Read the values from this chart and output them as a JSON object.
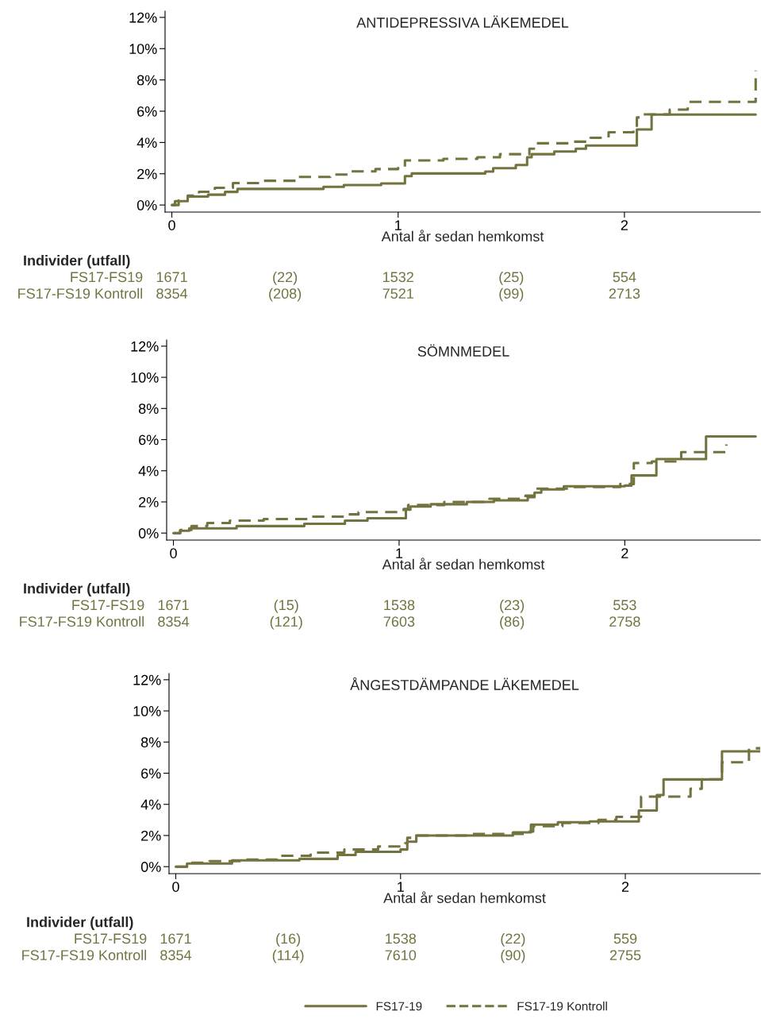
{
  "chart_data": [
    {
      "type": "step",
      "title": "ANTIDEPRESSIVA LÄKEMEDEL",
      "xlabel": "Antal år sedan hemkomst",
      "xlim": [
        -0.03,
        2.6
      ],
      "xticks": [
        0,
        1,
        2
      ],
      "ylim": [
        -0.45,
        12.4
      ],
      "yticks": [
        {
          "value": 0,
          "label": "0%"
        },
        {
          "value": 2,
          "label": "2%"
        },
        {
          "value": 4,
          "label": "4%"
        },
        {
          "value": 6,
          "label": "6%"
        },
        {
          "value": 8,
          "label": "8%"
        },
        {
          "value": 10,
          "label": "10%"
        },
        {
          "value": 12,
          "label": "12%"
        }
      ],
      "grid": false,
      "series": [
        {
          "name": "FS17-19",
          "color": "#73733f",
          "line_style": "solid",
          "x": [
            0,
            0.014,
            0.07,
            0.16,
            0.235,
            0.29,
            0.67,
            0.76,
            0.925,
            1.03,
            1.06,
            1.385,
            1.42,
            1.52,
            1.57,
            1.59,
            1.69,
            1.785,
            1.83,
            2.055,
            2.12,
            2.58
          ],
          "values": [
            0,
            0.25,
            0.54,
            0.66,
            0.84,
            1.03,
            1.16,
            1.28,
            1.38,
            1.85,
            2.02,
            2.14,
            2.36,
            2.56,
            3.05,
            3.25,
            3.42,
            3.6,
            3.8,
            4.83,
            5.78,
            5.78
          ]
        },
        {
          "name": "FS17-19 Kontroll",
          "color": "#73733f",
          "line_style": "dashed",
          "x": [
            0,
            0.03,
            0.07,
            0.12,
            0.19,
            0.27,
            0.4,
            0.55,
            0.7,
            0.78,
            0.9,
            1.0,
            1.03,
            1.2,
            1.35,
            1.45,
            1.58,
            1.6,
            1.76,
            1.85,
            1.93,
            2.04,
            2.055,
            2.08,
            2.2,
            2.28,
            2.58
          ],
          "values": [
            0,
            0.3,
            0.6,
            0.85,
            1.1,
            1.4,
            1.55,
            1.8,
            1.95,
            2.15,
            2.3,
            2.45,
            2.85,
            2.95,
            3.05,
            3.25,
            3.6,
            3.95,
            4.05,
            4.3,
            4.65,
            4.85,
            5.6,
            5.8,
            6.1,
            6.6,
            8.6
          ]
        }
      ],
      "legend": "bottom",
      "annotations": [
        "Individer (utfall)",
        "FS17-FS19",
        "1671",
        "(22)",
        "1532",
        "(25)",
        "554",
        "FS17-FS19 Kontroll",
        "8354",
        "(208)",
        "7521",
        "(99)",
        "2713"
      ]
    },
    {
      "type": "step",
      "title": "SÖMNMEDEL",
      "xlabel": "Antal år sedan hemkomst",
      "xlim": [
        -0.03,
        2.6
      ],
      "xticks": [
        0,
        1,
        2
      ],
      "ylim": [
        -0.45,
        12.4
      ],
      "yticks": [
        {
          "value": 0,
          "label": "0%"
        },
        {
          "value": 2,
          "label": "2%"
        },
        {
          "value": 4,
          "label": "4%"
        },
        {
          "value": 6,
          "label": "6%"
        },
        {
          "value": 8,
          "label": "8%"
        },
        {
          "value": 10,
          "label": "10%"
        },
        {
          "value": 12,
          "label": "12%"
        }
      ],
      "grid": false,
      "series": [
        {
          "color": "#73733f",
          "line_style": "solid",
          "x": [
            0,
            0.03,
            0.07,
            0.28,
            0.58,
            0.76,
            0.86,
            1.03,
            1.05,
            1.14,
            1.3,
            1.42,
            1.57,
            1.6,
            1.63,
            1.73,
            2.0,
            2.03,
            2.14,
            2.36,
            2.58
          ],
          "values": [
            0,
            0.15,
            0.3,
            0.45,
            0.6,
            0.8,
            0.95,
            1.5,
            1.7,
            1.85,
            2.0,
            2.1,
            2.3,
            2.6,
            2.8,
            3.0,
            3.05,
            3.7,
            4.75,
            6.2,
            6.2
          ]
        },
        {
          "color": "#73733f",
          "line_style": "dashed",
          "x": [
            0,
            0.03,
            0.08,
            0.15,
            0.25,
            0.4,
            0.6,
            0.76,
            0.82,
            1.02,
            1.04,
            1.2,
            1.4,
            1.56,
            1.6,
            1.76,
            1.98,
            2.04,
            2.12,
            2.25,
            2.45
          ],
          "values": [
            0,
            0.2,
            0.45,
            0.65,
            0.8,
            0.9,
            1.05,
            1.2,
            1.35,
            1.55,
            1.8,
            2.0,
            2.2,
            2.4,
            2.85,
            2.95,
            3.15,
            4.5,
            4.6,
            5.2,
            5.7
          ]
        }
      ],
      "annotations": [
        "Individer (utfall)",
        "FS17-FS19",
        "1671",
        "(15)",
        "1538",
        "(23)",
        "553",
        "FS17-FS19 Kontroll",
        "8354",
        "(121)",
        "7603",
        "(86)",
        "2758"
      ]
    },
    {
      "type": "step",
      "title": "ÅNGESTDÄMPANDE LÄKEMEDEL",
      "xlabel": "Antal år sedan hemkomst",
      "xlim": [
        -0.03,
        2.6
      ],
      "xticks": [
        0,
        1,
        2
      ],
      "ylim": [
        -0.45,
        12.4
      ],
      "yticks": [
        {
          "value": 0,
          "label": "0%"
        },
        {
          "value": 2,
          "label": "2%"
        },
        {
          "value": 4,
          "label": "4%"
        },
        {
          "value": 6,
          "label": "6%"
        },
        {
          "value": 8,
          "label": "8%"
        },
        {
          "value": 10,
          "label": "10%"
        },
        {
          "value": 12,
          "label": "12%"
        }
      ],
      "grid": false,
      "series": [
        {
          "color": "#73733f",
          "line_style": "solid",
          "x": [
            0,
            0.05,
            0.25,
            0.55,
            0.72,
            0.8,
            1.0,
            1.03,
            1.07,
            1.5,
            1.58,
            1.7,
            1.84,
            2.06,
            2.14,
            2.17,
            2.43,
            2.6
          ],
          "values": [
            0,
            0.2,
            0.4,
            0.5,
            0.75,
            0.95,
            1.1,
            1.6,
            2.0,
            2.2,
            2.7,
            2.85,
            2.9,
            3.6,
            4.6,
            5.6,
            7.4,
            7.4
          ]
        },
        {
          "color": "#73733f",
          "line_style": "dashed",
          "x": [
            0,
            0.05,
            0.15,
            0.3,
            0.45,
            0.6,
            0.75,
            0.9,
            1.02,
            1.03,
            1.07,
            1.3,
            1.55,
            1.59,
            1.72,
            1.88,
            1.96,
            2.07,
            2.29,
            2.34,
            2.43,
            2.55,
            2.6
          ],
          "values": [
            0,
            0.25,
            0.35,
            0.45,
            0.7,
            0.9,
            1.1,
            1.3,
            1.5,
            1.85,
            2.0,
            2.1,
            2.25,
            2.6,
            2.8,
            3.0,
            3.2,
            4.5,
            5.0,
            5.6,
            6.7,
            7.6,
            7.6
          ]
        }
      ],
      "annotations": [
        "Individer (utfall)",
        "FS17-FS19",
        "1671",
        "(16)",
        "1538",
        "(22)",
        "559",
        "FS17-FS19 Kontroll",
        "8354",
        "(114)",
        "7610",
        "(90)",
        "2755"
      ]
    }
  ]
}
